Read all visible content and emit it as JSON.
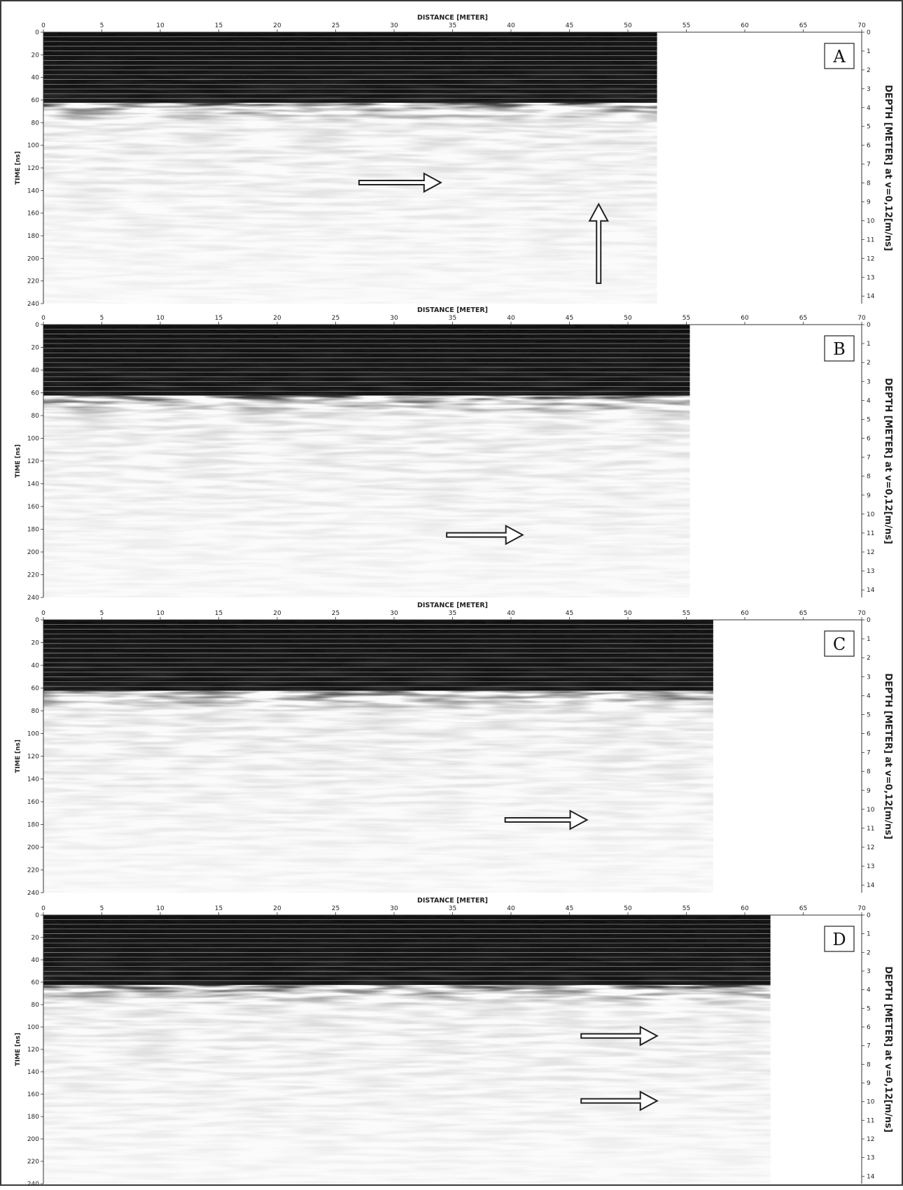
{
  "chart_data": [
    {
      "type": "heatmap",
      "panel_label": "A",
      "xlabel": "DISTANCE [METER]",
      "ylabel": "TIME [ns]",
      "y2label": "DEPTH [METER] at v=0,12[m/ns]",
      "xlim": [
        0,
        70
      ],
      "ylim": [
        0,
        240
      ],
      "y2lim": [
        0,
        14.4
      ],
      "x_ticks": [
        0,
        5,
        10,
        15,
        20,
        25,
        30,
        35,
        40,
        45,
        50,
        55,
        60,
        65,
        70
      ],
      "y_ticks": [
        0,
        20,
        40,
        60,
        80,
        100,
        120,
        140,
        160,
        180,
        200,
        220,
        240
      ],
      "y2_ticks": [
        0,
        1,
        2,
        3,
        4,
        5,
        6,
        7,
        8,
        9,
        10,
        11,
        12,
        13,
        14
      ],
      "profile_length_m": 52.5,
      "grid": false,
      "colormap": "grayscale",
      "arrows": [
        {
          "direction": "right",
          "x_start": 27,
          "x_end": 34,
          "time": 133
        },
        {
          "direction": "up",
          "x": 47.5,
          "time_start": 222,
          "time_end": 152
        }
      ]
    },
    {
      "type": "heatmap",
      "panel_label": "B",
      "xlabel": "DISTANCE [METER]",
      "ylabel": "TIME [ns]",
      "y2label": "DEPTH [METER] at v=0,12[m/ns]",
      "xlim": [
        0,
        70
      ],
      "ylim": [
        0,
        240
      ],
      "y2lim": [
        0,
        14.4
      ],
      "x_ticks": [
        0,
        5,
        10,
        15,
        20,
        25,
        30,
        35,
        40,
        45,
        50,
        55,
        60,
        65,
        70
      ],
      "y_ticks": [
        0,
        20,
        40,
        60,
        80,
        100,
        120,
        140,
        160,
        180,
        200,
        220,
        240
      ],
      "y2_ticks": [
        0,
        1,
        2,
        3,
        4,
        5,
        6,
        7,
        8,
        9,
        10,
        11,
        12,
        13,
        14
      ],
      "profile_length_m": 55.3,
      "grid": false,
      "colormap": "grayscale",
      "arrows": [
        {
          "direction": "right",
          "x_start": 34.5,
          "x_end": 41,
          "time": 185
        }
      ]
    },
    {
      "type": "heatmap",
      "panel_label": "C",
      "xlabel": "DISTANCE [METER]",
      "ylabel": "TIME [ns]",
      "y2label": "DEPTH [METER] at v=0,12[m/ns]",
      "xlim": [
        0,
        70
      ],
      "ylim": [
        0,
        240
      ],
      "y2lim": [
        0,
        14.4
      ],
      "x_ticks": [
        0,
        5,
        10,
        15,
        20,
        25,
        30,
        35,
        40,
        45,
        50,
        55,
        60,
        65,
        70
      ],
      "y_ticks": [
        0,
        20,
        40,
        60,
        80,
        100,
        120,
        140,
        160,
        180,
        200,
        220,
        240
      ],
      "y2_ticks": [
        0,
        1,
        2,
        3,
        4,
        5,
        6,
        7,
        8,
        9,
        10,
        11,
        12,
        13,
        14
      ],
      "profile_length_m": 57.3,
      "grid": false,
      "colormap": "grayscale",
      "arrows": [
        {
          "direction": "right",
          "x_start": 39.5,
          "x_end": 46.5,
          "time": 176
        }
      ]
    },
    {
      "type": "heatmap",
      "panel_label": "D",
      "xlabel": "DISTANCE [METER]",
      "ylabel": "TIME [ns]",
      "y2label": "DEPTH [METER] at v=0,12[m/ns]",
      "xlim": [
        0,
        70
      ],
      "ylim": [
        0,
        240
      ],
      "y2lim": [
        0,
        14.4
      ],
      "x_ticks": [
        0,
        5,
        10,
        15,
        20,
        25,
        30,
        35,
        40,
        45,
        50,
        55,
        60,
        65,
        70
      ],
      "y_ticks": [
        0,
        20,
        40,
        60,
        80,
        100,
        120,
        140,
        160,
        180,
        200,
        220,
        240
      ],
      "y2_ticks": [
        0,
        1,
        2,
        3,
        4,
        5,
        6,
        7,
        8,
        9,
        10,
        11,
        12,
        13,
        14
      ],
      "profile_length_m": 62.2,
      "grid": false,
      "colormap": "grayscale",
      "arrows": [
        {
          "direction": "right",
          "x_start": 46,
          "x_end": 52.5,
          "time": 108
        },
        {
          "direction": "right",
          "x_start": 46,
          "x_end": 52.5,
          "time": 166
        }
      ]
    }
  ]
}
